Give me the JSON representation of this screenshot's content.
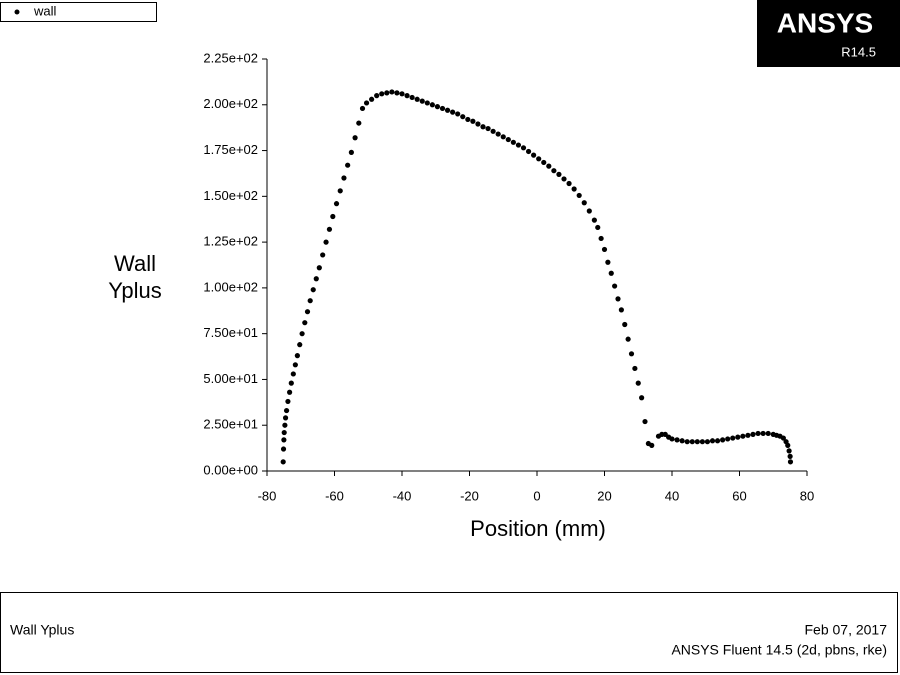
{
  "chart_data": {
    "type": "scatter",
    "series": [
      {
        "name": "wall",
        "color": "#000000",
        "x": [
          -75.2,
          -75.1,
          -75,
          -74.9,
          -74.7,
          -74.5,
          -74.2,
          -73.8,
          -73.3,
          -72.8,
          -72.2,
          -71.6,
          -71,
          -70.3,
          -69.6,
          -68.8,
          -68,
          -67.2,
          -66.3,
          -65.4,
          -64.5,
          -63.5,
          -62.5,
          -61.5,
          -60.5,
          -59.4,
          -58.3,
          -57.2,
          -56.1,
          -55,
          -53.9,
          -52.8,
          -51.7,
          -50.5,
          -49,
          -47.5,
          -46,
          -44.5,
          -43,
          -41.5,
          -40,
          -38.5,
          -37,
          -35.5,
          -34,
          -32.5,
          -31,
          -29.5,
          -28,
          -26.5,
          -25,
          -23.5,
          -22,
          -20.5,
          -19,
          -17.5,
          -16,
          -14.5,
          -13,
          -11.5,
          -10,
          -8.5,
          -7,
          -5.5,
          -4,
          -2.5,
          -1,
          0.5,
          2,
          3.5,
          5,
          6.5,
          8,
          9.5,
          11,
          12.5,
          14,
          15.5,
          17,
          18,
          19,
          20,
          21,
          22,
          23,
          24,
          25,
          26,
          27,
          28,
          29,
          30,
          31,
          32,
          33,
          34,
          36,
          37,
          38,
          39,
          40,
          41.5,
          43,
          44.5,
          46,
          47.5,
          49,
          50.5,
          52,
          53.5,
          55,
          56.5,
          58,
          59.5,
          61,
          62.5,
          64,
          65.5,
          67,
          68.5,
          70,
          71,
          72,
          73,
          73.8,
          74.3,
          74.7,
          75,
          75.1
        ],
        "values": [
          5,
          12,
          17,
          21,
          25,
          29,
          33,
          38,
          43,
          48,
          53,
          58,
          63,
          69,
          75,
          81,
          87,
          93,
          99,
          105,
          111,
          118,
          125,
          132,
          139,
          146,
          153,
          160,
          167,
          174,
          182,
          190,
          198,
          201,
          203,
          205,
          206,
          206.5,
          207,
          206.5,
          206,
          205,
          204,
          203,
          202,
          201,
          200,
          199,
          198,
          197,
          196,
          195,
          193.5,
          192,
          191,
          189.5,
          188,
          187,
          185.5,
          184,
          182.5,
          181,
          179.5,
          178,
          176.5,
          174.5,
          172.5,
          170.5,
          168.5,
          166.5,
          164,
          162,
          159.5,
          157,
          154,
          150.5,
          146.5,
          142,
          137,
          133,
          127,
          121,
          114,
          108,
          101,
          94,
          88,
          80,
          72,
          64,
          56,
          48,
          40,
          27,
          15,
          14,
          19,
          20,
          20,
          18.5,
          17.5,
          17,
          16.5,
          16,
          16,
          16,
          16,
          16,
          16.5,
          16.5,
          17,
          17.5,
          18,
          18.5,
          19,
          19.5,
          20,
          20.5,
          20.5,
          20.5,
          20,
          19.5,
          19,
          18,
          16,
          14,
          11,
          8,
          5
        ]
      }
    ],
    "xlim": [
      -80,
      80
    ],
    "xticks": [
      -80,
      -60,
      -40,
      -20,
      0,
      20,
      40,
      60,
      80
    ],
    "ylim": [
      0,
      225
    ],
    "yticks": [
      {
        "value": 0,
        "label": "0.00e+00"
      },
      {
        "value": 25,
        "label": "2.50e+01"
      },
      {
        "value": 50,
        "label": "5.00e+01"
      },
      {
        "value": 75,
        "label": "7.50e+01"
      },
      {
        "value": 100,
        "label": "1.00e+02"
      },
      {
        "value": 125,
        "label": "1.25e+02"
      },
      {
        "value": 150,
        "label": "1.50e+02"
      },
      {
        "value": 175,
        "label": "1.75e+02"
      },
      {
        "value": 200,
        "label": "2.00e+02"
      },
      {
        "value": 225,
        "label": "2.25e+02"
      }
    ],
    "x_label": "Position (mm)",
    "y_label": [
      "Wall",
      "Yplus"
    ]
  },
  "logo": {
    "name": "ANSYS",
    "version": "R14.5"
  },
  "footer": {
    "title": "Wall Yplus",
    "date": "Feb 07, 2017",
    "software": "ANSYS Fluent 14.5 (2d, pbns, rke)"
  }
}
